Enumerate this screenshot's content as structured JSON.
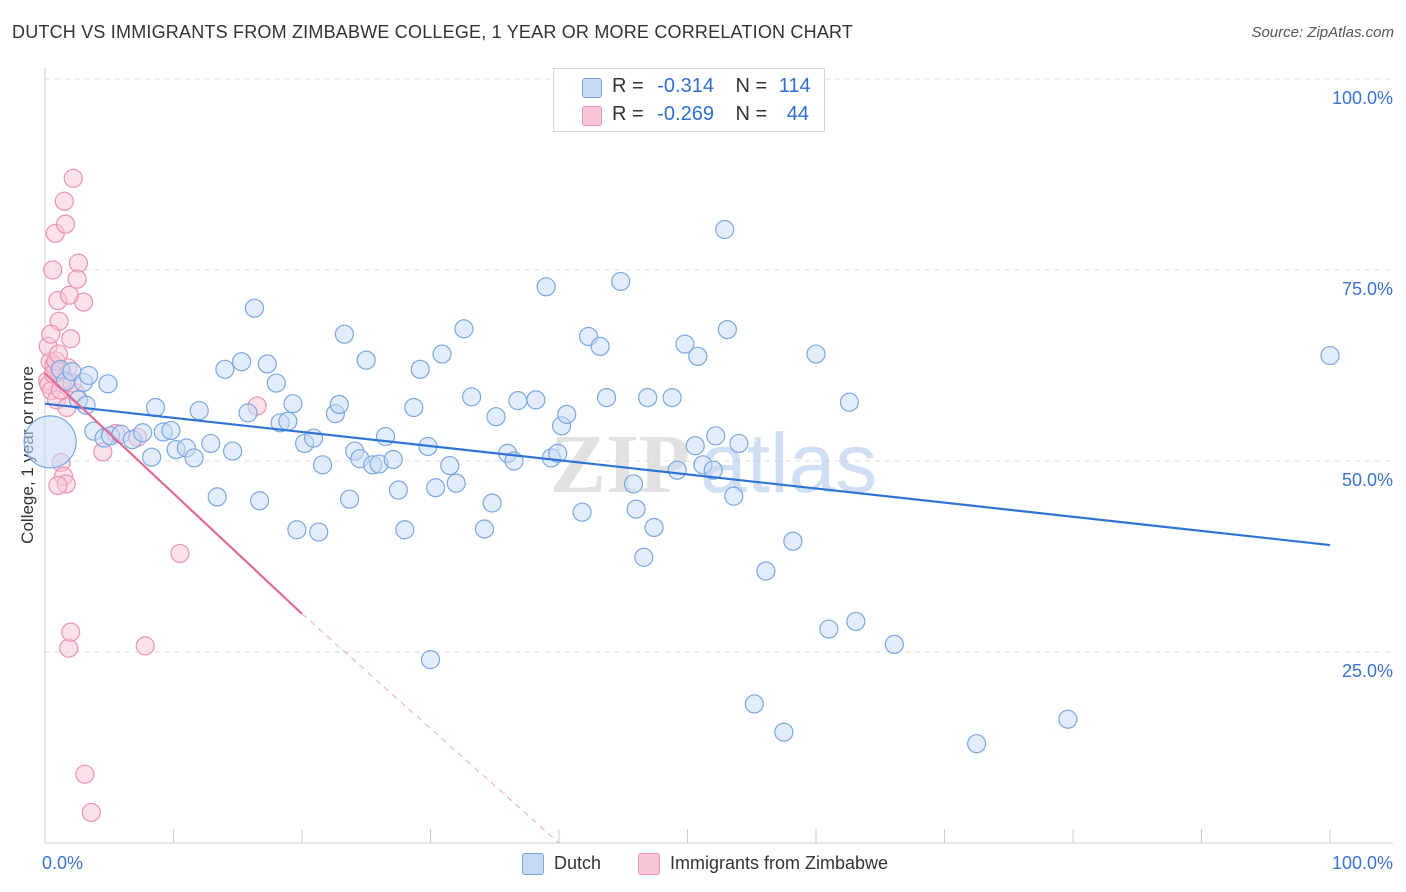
{
  "title": "DUTCH VS IMMIGRANTS FROM ZIMBABWE COLLEGE, 1 YEAR OR MORE CORRELATION CHART",
  "source": "Source: ZipAtlas.com",
  "watermark": {
    "bold": "ZIP",
    "light": "atlas"
  },
  "legend_top": [
    {
      "r_label": "R =",
      "r_value": "-0.314",
      "n_label": "N =",
      "n_value": "114"
    },
    {
      "r_label": "R =",
      "r_value": "-0.269",
      "n_label": "N =",
      "n_value": "44"
    }
  ],
  "legend_bottom": [
    "Dutch",
    "Immigrants from Zimbabwe"
  ],
  "colors": {
    "dutch_fill": "#c7daf5",
    "dutch_stroke": "#7aa8e0",
    "dutch_line": "#2f74d4",
    "zim_fill": "#f7c6d6",
    "zim_stroke": "#ec92b2",
    "zim_line": "#e06a96",
    "grid": "#dddddd",
    "axis_text": "#3b73d0"
  },
  "chart_data": {
    "type": "scatter",
    "title": "DUTCH VS IMMIGRANTS FROM ZIMBABWE COLLEGE, 1 YEAR OR MORE CORRELATION CHART",
    "xlabel": "",
    "ylabel": "College, 1 year or more",
    "xlim": [
      0,
      100
    ],
    "ylim": [
      0,
      100
    ],
    "x_tick_labels": [
      "0.0%",
      "100.0%"
    ],
    "y_ticks": [
      25,
      50,
      75,
      100
    ],
    "y_tick_labels": [
      "25.0%",
      "50.0%",
      "75.0%",
      "100.0%"
    ],
    "series": [
      {
        "name": "Dutch",
        "r": -0.314,
        "n": 114,
        "trend": {
          "x": [
            0,
            100
          ],
          "y": [
            57.5,
            39.0
          ]
        },
        "points": [
          [
            0.4,
            52.5
          ],
          [
            1.2,
            62
          ],
          [
            1.6,
            60.4
          ],
          [
            2.1,
            61.7
          ],
          [
            2.6,
            58
          ],
          [
            3.2,
            57.3
          ],
          [
            3.8,
            53.9
          ],
          [
            4.6,
            53
          ],
          [
            5.1,
            53.3
          ],
          [
            5.9,
            53.5
          ],
          [
            6.8,
            52.8
          ],
          [
            7.6,
            53.7
          ],
          [
            8.3,
            50.5
          ],
          [
            8.6,
            57
          ],
          [
            9.2,
            53.8
          ],
          [
            9.8,
            54
          ],
          [
            10.2,
            51.5
          ],
          [
            11,
            51.7
          ],
          [
            11.6,
            50.4
          ],
          [
            12,
            56.6
          ],
          [
            12.9,
            52.3
          ],
          [
            13.4,
            45.3
          ],
          [
            14,
            62
          ],
          [
            14.6,
            51.3
          ],
          [
            15.3,
            63
          ],
          [
            15.8,
            56.3
          ],
          [
            16.3,
            70
          ],
          [
            16.7,
            44.8
          ],
          [
            17.3,
            62.7
          ],
          [
            18,
            60.2
          ],
          [
            18.3,
            55
          ],
          [
            18.9,
            55.2
          ],
          [
            19.3,
            57.5
          ],
          [
            19.6,
            41
          ],
          [
            20.2,
            52.3
          ],
          [
            20.9,
            53
          ],
          [
            21.3,
            40.7
          ],
          [
            21.6,
            49.5
          ],
          [
            22.6,
            56.2
          ],
          [
            22.9,
            57.4
          ],
          [
            23.3,
            66.6
          ],
          [
            23.7,
            45
          ],
          [
            24.1,
            51.3
          ],
          [
            24.5,
            50.3
          ],
          [
            25,
            63.2
          ],
          [
            25.5,
            49.5
          ],
          [
            26,
            49.6
          ],
          [
            26.5,
            53.2
          ],
          [
            27.1,
            50.2
          ],
          [
            27.5,
            46.2
          ],
          [
            28,
            41
          ],
          [
            28.7,
            57
          ],
          [
            29.2,
            62
          ],
          [
            29.8,
            51.9
          ],
          [
            30.4,
            46.5
          ],
          [
            30.9,
            64
          ],
          [
            31.5,
            49.4
          ],
          [
            32,
            47.1
          ],
          [
            32.6,
            67.3
          ],
          [
            33.2,
            58.4
          ],
          [
            34.2,
            41.1
          ],
          [
            34.8,
            44.5
          ],
          [
            35.1,
            55.8
          ],
          [
            36,
            51
          ],
          [
            36.5,
            50
          ],
          [
            36.8,
            57.9
          ],
          [
            38.2,
            58
          ],
          [
            39,
            72.8
          ],
          [
            39.4,
            50.4
          ],
          [
            39.9,
            51
          ],
          [
            40.2,
            54.6
          ],
          [
            40.6,
            56.1
          ],
          [
            41.8,
            43.3
          ],
          [
            42.3,
            66.3
          ],
          [
            43.2,
            65
          ],
          [
            43.7,
            58.3
          ],
          [
            44.8,
            73.5
          ],
          [
            45.8,
            47
          ],
          [
            46,
            43.7
          ],
          [
            46.6,
            37.4
          ],
          [
            46.9,
            58.3
          ],
          [
            47.4,
            41.3
          ],
          [
            48.8,
            58.3
          ],
          [
            49.2,
            48.8
          ],
          [
            49.8,
            65.3
          ],
          [
            50.6,
            52
          ],
          [
            50.8,
            63.7
          ],
          [
            51.2,
            49.5
          ],
          [
            52,
            48.8
          ],
          [
            52.2,
            53.3
          ],
          [
            52.9,
            80.3
          ],
          [
            53.1,
            67.2
          ],
          [
            53.6,
            45.4
          ],
          [
            54,
            52.3
          ],
          [
            56.1,
            35.6
          ],
          [
            57.5,
            14.5
          ],
          [
            58.2,
            39.5
          ],
          [
            60,
            64
          ],
          [
            61,
            28
          ],
          [
            62.6,
            57.7
          ],
          [
            63.1,
            29
          ],
          [
            66.1,
            26
          ],
          [
            72.5,
            13
          ],
          [
            79.6,
            16.2
          ],
          [
            100,
            63.8
          ],
          [
            3,
            60.3
          ],
          [
            3.4,
            61.2
          ],
          [
            4.9,
            60.1
          ],
          [
            55.2,
            18.2
          ],
          [
            30,
            24
          ]
        ]
      },
      {
        "name": "Immigrants from Zimbabwe",
        "r": -0.269,
        "n": 44,
        "trend": {
          "x": [
            0,
            20
          ],
          "y": [
            61.5,
            30.0
          ]
        },
        "trend_extension": {
          "x": [
            20,
            40
          ],
          "y": [
            30.0,
            0
          ]
        },
        "points": [
          [
            0.2,
            60.5
          ],
          [
            0.4,
            63
          ],
          [
            0.6,
            75
          ],
          [
            0.8,
            79.8
          ],
          [
            1,
            71
          ],
          [
            1.1,
            68.3
          ],
          [
            1.3,
            61.8
          ],
          [
            1.5,
            84
          ],
          [
            1.6,
            81
          ],
          [
            1.8,
            62.2
          ],
          [
            2,
            66
          ],
          [
            2.2,
            87
          ],
          [
            2.4,
            58.9
          ],
          [
            2.6,
            75.9
          ],
          [
            0.3,
            60
          ],
          [
            0.5,
            59.2
          ],
          [
            0.7,
            62.5
          ],
          [
            0.9,
            58
          ],
          [
            1.2,
            59.3
          ],
          [
            1.4,
            60.6
          ],
          [
            1.7,
            57
          ],
          [
            2.1,
            60.2
          ],
          [
            0.25,
            65
          ],
          [
            0.45,
            66.6
          ],
          [
            0.65,
            61.4
          ],
          [
            0.85,
            63.1
          ],
          [
            1.05,
            64
          ],
          [
            1.25,
            49.8
          ],
          [
            1.45,
            48
          ],
          [
            1.65,
            47
          ],
          [
            1.85,
            25.5
          ],
          [
            2,
            27.6
          ],
          [
            2.5,
            73.8
          ],
          [
            3,
            70.8
          ],
          [
            4.5,
            51.2
          ],
          [
            5.5,
            53.6
          ],
          [
            7.2,
            53.1
          ],
          [
            7.8,
            25.8
          ],
          [
            10.5,
            37.9
          ],
          [
            16.5,
            57.2
          ],
          [
            3.1,
            9
          ],
          [
            3.6,
            4
          ],
          [
            1,
            46.8
          ],
          [
            1.9,
            71.7
          ]
        ]
      }
    ]
  }
}
